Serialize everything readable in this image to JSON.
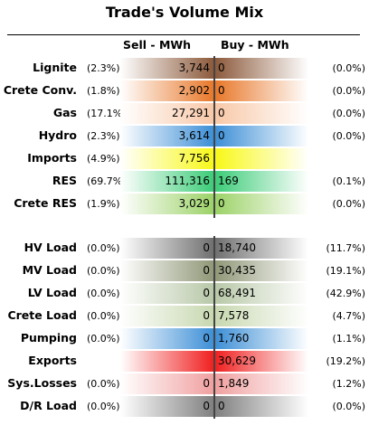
{
  "title": "Trade's Volume Mix",
  "columns": {
    "sell": "Sell - MWh",
    "buy": "Buy - MWh"
  },
  "rows": [
    {
      "label": "Lignite",
      "sell_pct": "(2.3%)",
      "sell": "3,744",
      "buy": "0",
      "buy_pct": "(0.0%)",
      "sell_color": "#8c5a3c",
      "buy_color": "#8c5a3c"
    },
    {
      "label": "Crete Conv.",
      "sell_pct": "(1.8%)",
      "sell": "2,902",
      "buy": "0",
      "buy_pct": "(0.0%)",
      "sell_color": "#e8782a",
      "buy_color": "#e8782a"
    },
    {
      "label": "Gas",
      "sell_pct": "(17.1%)",
      "sell": "27,291",
      "buy": "0",
      "buy_pct": "(0.0%)",
      "sell_color": "#f8c8a8",
      "buy_color": "#f8c8a8"
    },
    {
      "label": "Hydro",
      "sell_pct": "(2.3%)",
      "sell": "3,614",
      "buy": "0",
      "buy_pct": "(0.0%)",
      "sell_color": "#3d8fd6",
      "buy_color": "#3d8fd6"
    },
    {
      "label": "Imports",
      "sell_pct": "(4.9%)",
      "sell": "7,756",
      "buy": "",
      "buy_pct": "",
      "sell_color": "#f8f818",
      "buy_color": "#f8f818"
    },
    {
      "label": "RES",
      "sell_pct": "(69.7%)",
      "sell": "111,316",
      "buy": "169",
      "buy_pct": "(0.1%)",
      "sell_color": "#3ccc78",
      "buy_color": "#3ccc78"
    },
    {
      "label": "Crete RES",
      "sell_pct": "(1.9%)",
      "sell": "3,029",
      "buy": "0",
      "buy_pct": "(0.0%)",
      "sell_color": "#9cd268",
      "buy_color": "#9cd268"
    },
    {
      "label": "HV Load",
      "sell_pct": "(0.0%)",
      "sell": "0",
      "buy": "18,740",
      "buy_pct": "(11.7%)",
      "sell_color": "#707070",
      "buy_color": "#707070"
    },
    {
      "label": "MV Load",
      "sell_pct": "(0.0%)",
      "sell": "0",
      "buy": "30,435",
      "buy_pct": "(19.1%)",
      "sell_color": "#909878",
      "buy_color": "#909878"
    },
    {
      "label": "LV Load",
      "sell_pct": "(0.0%)",
      "sell": "0",
      "buy": "68,491",
      "buy_pct": "(42.9%)",
      "sell_color": "#b8c8a8",
      "buy_color": "#b8c8a8"
    },
    {
      "label": "Crete Load",
      "sell_pct": "(0.0%)",
      "sell": "0",
      "buy": "7,578",
      "buy_pct": "(4.7%)",
      "sell_color": "#c8d8b0",
      "buy_color": "#c8d8b0"
    },
    {
      "label": "Pumping",
      "sell_pct": "(0.0%)",
      "sell": "0",
      "buy": "1,760",
      "buy_pct": "(1.1%)",
      "sell_color": "#3d8fd6",
      "buy_color": "#3d8fd6"
    },
    {
      "label": "Exports",
      "sell_pct": "",
      "sell": "",
      "buy": "30,629",
      "buy_pct": "(19.2%)",
      "sell_color": "#f02020",
      "buy_color": "#f02020"
    },
    {
      "label": "Sys.Losses",
      "sell_pct": "(0.0%)",
      "sell": "0",
      "buy": "1,849",
      "buy_pct": "(1.2%)",
      "sell_color": "#f0a0a0",
      "buy_color": "#f0a0a0"
    },
    {
      "label": "D/R Load",
      "sell_pct": "(0.0%)",
      "sell": "0",
      "buy": "0",
      "buy_pct": "(0.0%)",
      "sell_color": "#808080",
      "buy_color": "#808080"
    }
  ]
}
